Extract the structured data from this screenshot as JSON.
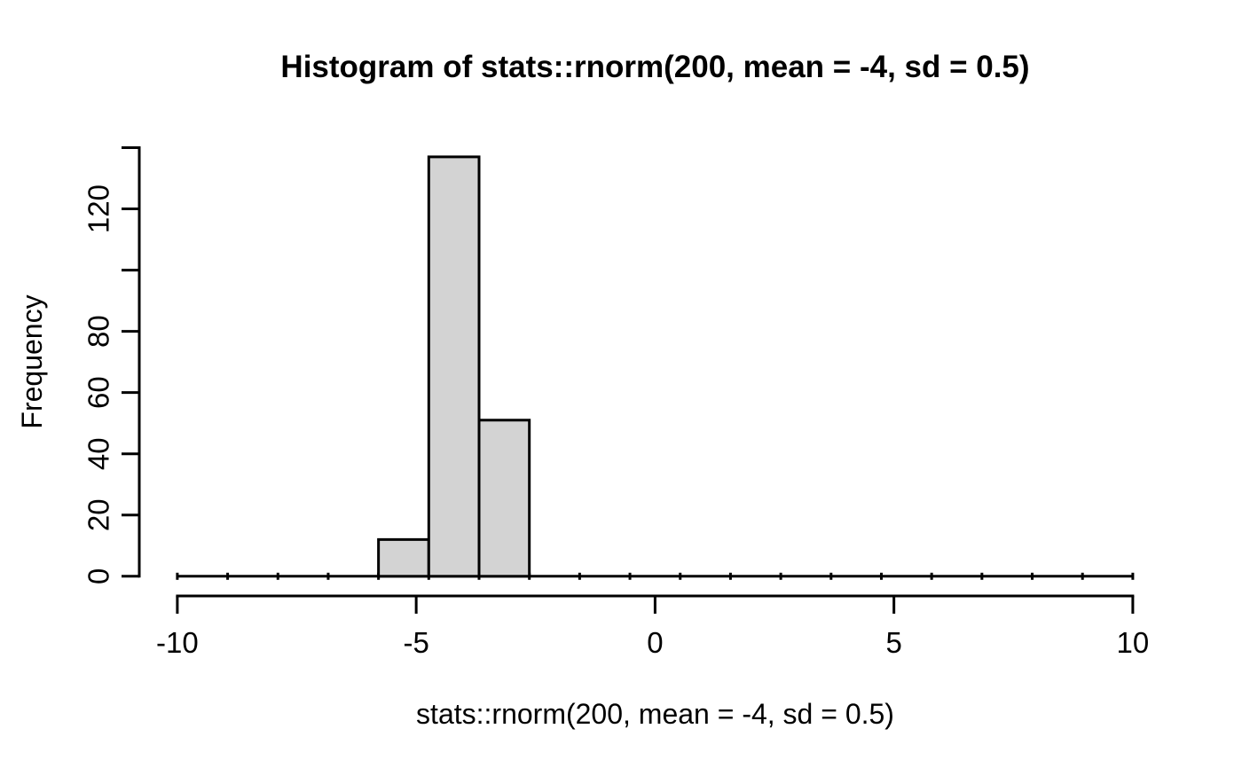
{
  "figure": {
    "background": "#ffffff"
  },
  "chart_data": {
    "type": "bar",
    "variant": "histogram",
    "title": "Histogram of stats::rnorm(200, mean = -4, sd = 0.5)",
    "xlabel": "stats::rnorm(200, mean = -4, sd = 0.5)",
    "ylabel": "Frequency",
    "bins": {
      "start": -10,
      "end": 10,
      "n_bins": 19,
      "bin_width": 1.05263,
      "counts": [
        0,
        0,
        0,
        0,
        12,
        137,
        51,
        0,
        0,
        0,
        0,
        0,
        0,
        0,
        0,
        0,
        0,
        0,
        0
      ]
    },
    "total_count": 200,
    "x_axis": {
      "range": [
        -10,
        10
      ],
      "ticks": [
        -10,
        -5,
        0,
        5,
        10
      ],
      "tick_labels": [
        "-10",
        "-5",
        "0",
        "5",
        "10"
      ]
    },
    "y_axis": {
      "range": [
        0,
        140
      ],
      "ticks": [
        0,
        20,
        40,
        60,
        80,
        100,
        120,
        140
      ],
      "tick_labels": [
        "0",
        "20",
        "40",
        "60",
        "80",
        "",
        "120",
        ""
      ]
    },
    "grid": false,
    "legend": "none",
    "colors": {
      "bar_fill": "#d3d3d3",
      "bar_border": "#000000",
      "axis": "#000000",
      "text": "#000000"
    }
  }
}
